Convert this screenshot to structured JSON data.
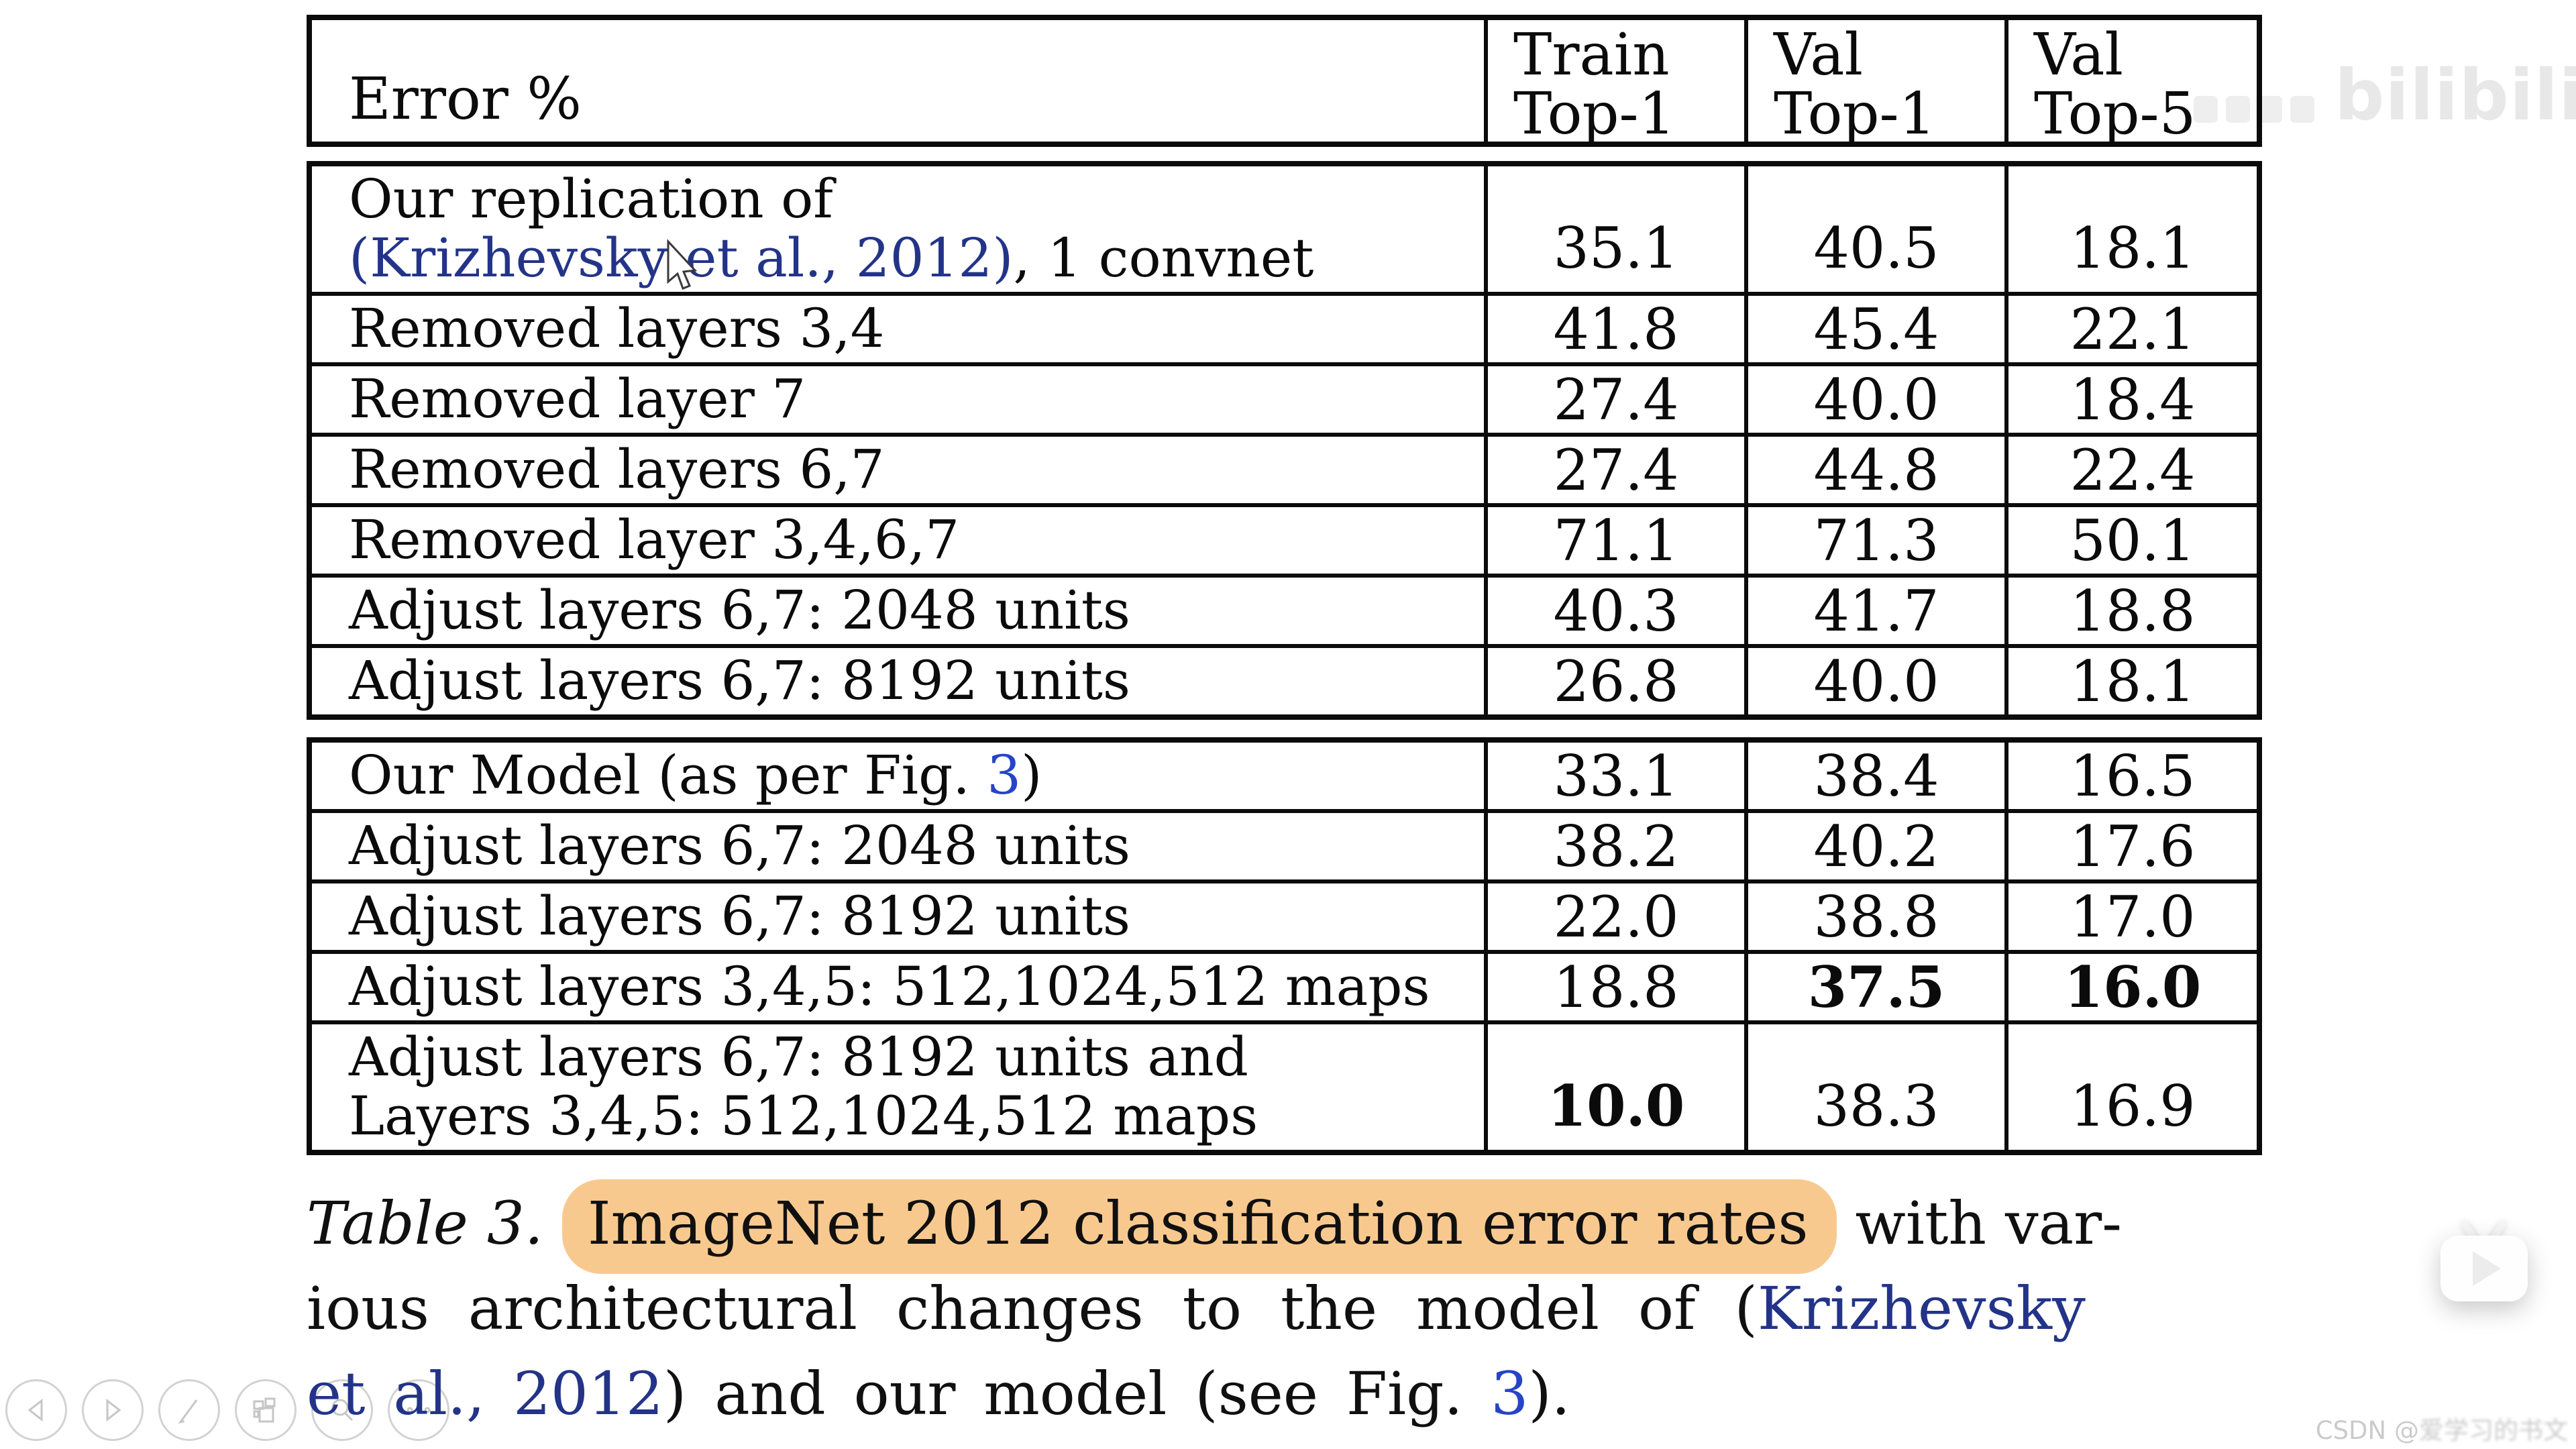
{
  "table": {
    "header": {
      "error_label": "Error %",
      "columns": [
        {
          "line1": "Train",
          "line2": "Top-1"
        },
        {
          "line1": "Val",
          "line2": "Top-1"
        },
        {
          "line1": "Val",
          "line2": "Top-5"
        }
      ]
    },
    "sections": [
      {
        "rows": [
          {
            "label": [
              {
                "t": "Our replication of",
                "br": true
              },
              {
                "t": "(Krizhevsky et al., 2012)",
                "s": "link"
              },
              {
                "t": ", 1 convnet"
              }
            ],
            "values": [
              {
                "t": "35.1"
              },
              {
                "t": "40.5"
              },
              {
                "t": "18.1"
              }
            ]
          },
          {
            "label": [
              {
                "t": "Removed layers 3,4"
              }
            ],
            "values": [
              {
                "t": "41.8"
              },
              {
                "t": "45.4"
              },
              {
                "t": "22.1"
              }
            ]
          },
          {
            "label": [
              {
                "t": "Removed layer 7"
              }
            ],
            "values": [
              {
                "t": "27.4"
              },
              {
                "t": "40.0"
              },
              {
                "t": "18.4"
              }
            ]
          },
          {
            "label": [
              {
                "t": "Removed layers 6,7"
              }
            ],
            "values": [
              {
                "t": "27.4"
              },
              {
                "t": "44.8"
              },
              {
                "t": "22.4"
              }
            ]
          },
          {
            "label": [
              {
                "t": "Removed layer 3,4,6,7"
              }
            ],
            "values": [
              {
                "t": "71.1"
              },
              {
                "t": "71.3"
              },
              {
                "t": "50.1"
              }
            ]
          },
          {
            "label": [
              {
                "t": "Adjust layers 6,7: 2048 units"
              }
            ],
            "values": [
              {
                "t": "40.3"
              },
              {
                "t": "41.7"
              },
              {
                "t": "18.8"
              }
            ]
          },
          {
            "label": [
              {
                "t": "Adjust layers 6,7: 8192 units"
              }
            ],
            "values": [
              {
                "t": "26.8"
              },
              {
                "t": "40.0"
              },
              {
                "t": "18.1"
              }
            ]
          }
        ]
      },
      {
        "rows": [
          {
            "label": [
              {
                "t": "Our Model (as per Fig. "
              },
              {
                "t": "3",
                "s": "link2"
              },
              {
                "t": ")"
              }
            ],
            "values": [
              {
                "t": "33.1"
              },
              {
                "t": "38.4"
              },
              {
                "t": "16.5"
              }
            ]
          },
          {
            "label": [
              {
                "t": "Adjust layers 6,7: 2048 units"
              }
            ],
            "values": [
              {
                "t": "38.2"
              },
              {
                "t": "40.2"
              },
              {
                "t": "17.6"
              }
            ]
          },
          {
            "label": [
              {
                "t": "Adjust layers 6,7: 8192 units"
              }
            ],
            "values": [
              {
                "t": "22.0"
              },
              {
                "t": "38.8"
              },
              {
                "t": "17.0"
              }
            ]
          },
          {
            "label": [
              {
                "t": "Adjust layers 3,4,5: 512,1024,512 maps"
              }
            ],
            "values": [
              {
                "t": "18.8"
              },
              {
                "t": "37.5",
                "b": true
              },
              {
                "t": "16.0",
                "b": true
              }
            ]
          },
          {
            "label": [
              {
                "t": "Adjust layers 6,7: 8192 units and",
                "br": true
              },
              {
                "t": "Layers 3,4,5: 512,1024,512 maps"
              }
            ],
            "values": [
              {
                "t": "10.0",
                "b": true
              },
              {
                "t": "38.3"
              },
              {
                "t": "16.9"
              }
            ]
          }
        ]
      }
    ]
  },
  "caption": {
    "line1": [
      {
        "t": "Table 3.",
        "s": "it"
      },
      {
        "t": " "
      },
      {
        "t": "ImageNet 2012 classification error rates",
        "s": "hl"
      },
      {
        "t": " with var-"
      }
    ],
    "line2": [
      {
        "t": "ious architectural changes to the model of ("
      },
      {
        "t": "Krizhevsky",
        "s": "link"
      }
    ],
    "line3": [
      {
        "t": "et al., 2012",
        "s": "link"
      },
      {
        "t": ") and our model (see Fig. "
      },
      {
        "t": "3",
        "s": "link2"
      },
      {
        "t": ")."
      }
    ]
  },
  "watermarks": {
    "bilibili": "bilibili",
    "csdn_prefix": "CSDN @",
    "csdn_user": "爱学习的书文"
  },
  "player_controls": [
    "previous",
    "next",
    "annotate",
    "pages",
    "magnifier",
    "more"
  ],
  "colors": {
    "citation_blue": "#233488",
    "figure_ref_blue": "#2744C6",
    "caption_highlight": "#F8C98F",
    "table_ink": "#0b0b0b"
  }
}
